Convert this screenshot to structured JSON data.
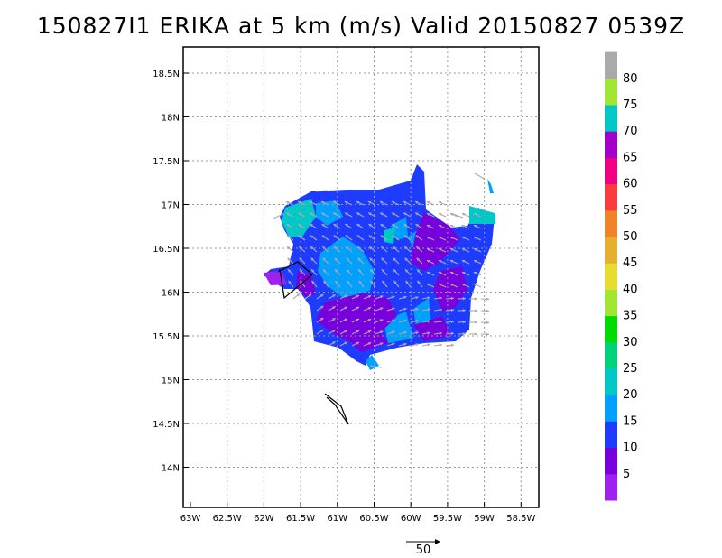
{
  "title": "150827I1 ERIKA at 5 km (m/s) Valid 20150827 0539Z",
  "lat_labels": [
    "18.5N",
    "18N",
    "17.5N",
    "17N",
    "16.5N",
    "16N",
    "15.5N",
    "15N",
    "14.5N",
    "14N"
  ],
  "lon_labels": [
    "63W",
    "62.5W",
    "62W",
    "61.5W",
    "61W",
    "60.5W",
    "60W",
    "59.5W",
    "59W",
    "58.5W"
  ],
  "colorbar": {
    "colors": [
      "#a020f0",
      "#7800dc",
      "#1e3cff",
      "#00a0ff",
      "#00c8c8",
      "#00d27c",
      "#00dc00",
      "#a0e632",
      "#e6dc32",
      "#e6af2d",
      "#f08228",
      "#fa3c3c",
      "#f00082",
      "#a000c8",
      "#00c8c8",
      "#a0e632",
      "#aaaaaa"
    ],
    "labels": [
      "5",
      "10",
      "15",
      "20",
      "25",
      "30",
      "35",
      "40",
      "45",
      "50",
      "55",
      "60",
      "65",
      "70",
      "75",
      "80"
    ]
  },
  "reference_vector_label": "50",
  "colors": {
    "frame": "#000000",
    "grid": "#999999",
    "vector": "#aaaaaa"
  }
}
